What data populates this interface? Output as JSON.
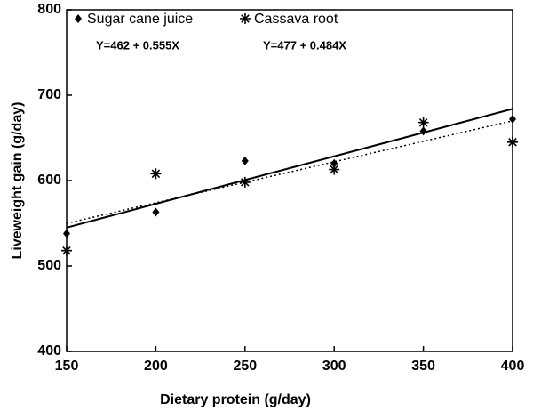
{
  "chart_data": {
    "type": "scatter",
    "x_label": "Dietary protein (g/day)",
    "y_label": "Liveweight gain (g/day)",
    "x": [
      150,
      200,
      250,
      300,
      350,
      400
    ],
    "xlim": [
      150,
      400
    ],
    "xticks": [
      150,
      200,
      250,
      300,
      350,
      400
    ],
    "ylim": [
      400,
      800
    ],
    "yticks": [
      400,
      500,
      600,
      700,
      800
    ],
    "series": [
      {
        "name": "Sugar cane juice",
        "marker": "diamond",
        "color": "#000000",
        "values": [
          538,
          563,
          623,
          620,
          658,
          672
        ],
        "equation": "Y=462 + 0.555X",
        "trend": {
          "x": [
            150,
            400
          ],
          "values": [
            545,
            684
          ],
          "dashed": false
        }
      },
      {
        "name": "Cassava root",
        "marker": "asterisk",
        "color": "#000000",
        "values": [
          518,
          608,
          598,
          613,
          668,
          645
        ],
        "equation": "Y=477 + 0.484X",
        "trend": {
          "x": [
            150,
            400
          ],
          "values": [
            550,
            670
          ],
          "dashed": true
        }
      }
    ]
  }
}
